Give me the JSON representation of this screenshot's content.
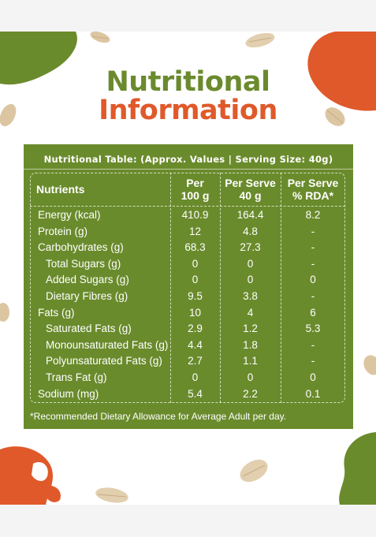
{
  "title": {
    "line1": "Nutritional",
    "line2": "Information"
  },
  "table": {
    "heading": "Nutritional Table: (Approx. Values | Serving Size: 40g)",
    "columns": {
      "nutrients": "Nutrients",
      "per100_l1": "Per",
      "per100_l2": "100 g",
      "serve_l1": "Per Serve",
      "serve_l2": "40 g",
      "rda_l1": "Per Serve",
      "rda_l2": "% RDA*"
    },
    "rows": [
      {
        "name": "Energy (kcal)",
        "per100": "410.9",
        "serve": "164.4",
        "rda": "8.2"
      },
      {
        "name": "Protein (g)",
        "per100": "12",
        "serve": "4.8",
        "rda": "-"
      },
      {
        "name": "Carbohydrates (g)",
        "per100": "68.3",
        "serve": "27.3",
        "rda": "-"
      },
      {
        "name": "Total Sugars (g)",
        "per100": "0",
        "serve": "0",
        "rda": "-"
      },
      {
        "name": "Added Sugars (g)",
        "per100": "0",
        "serve": "0",
        "rda": "0"
      },
      {
        "name": "Dietary Fibres (g)",
        "per100": "9.5",
        "serve": "3.8",
        "rda": "-"
      },
      {
        "name": "Fats (g)",
        "per100": "10",
        "serve": "4",
        "rda": "6"
      },
      {
        "name": "Saturated Fats (g)",
        "per100": "2.9",
        "serve": "1.2",
        "rda": "5.3"
      },
      {
        "name": "Monounsaturated Fats (g)",
        "per100": "4.4",
        "serve": "1.8",
        "rda": "-"
      },
      {
        "name": "Polyunsaturated Fats (g)",
        "per100": "2.7",
        "serve": "1.1",
        "rda": "-"
      },
      {
        "name": "Trans Fat (g)",
        "per100": "0",
        "serve": "0",
        "rda": "0"
      },
      {
        "name": "Sodium (mg)",
        "per100": "5.4",
        "serve": "2.2",
        "rda": "0.1"
      }
    ],
    "footnote": "*Recommended Dietary Allowance for Average Adult per day."
  },
  "colors": {
    "green": "#6a8b2c",
    "orange": "#e0592a",
    "oat": "#dcc6a2"
  },
  "decorations": [
    "oat-flake-icon",
    "green-blob",
    "orange-blob"
  ]
}
